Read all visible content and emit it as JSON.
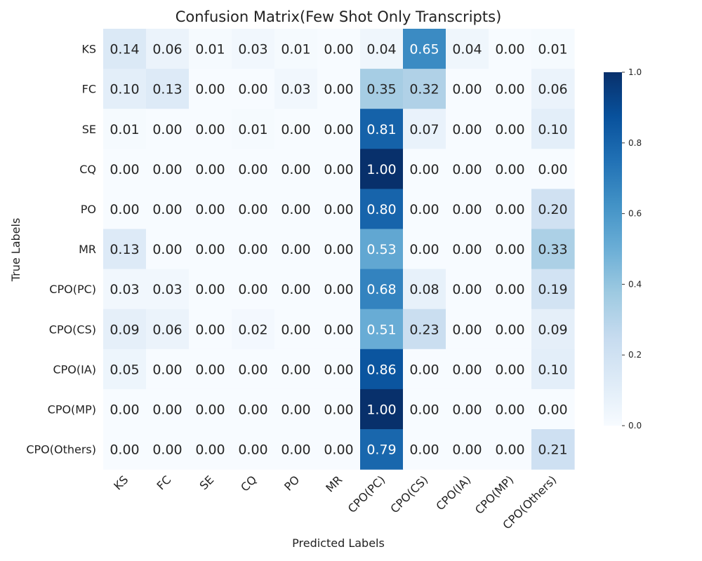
{
  "chart_data": {
    "type": "heatmap",
    "title": "Confusion Matrix(Few Shot Only Transcripts)",
    "xlabel": "Predicted Labels",
    "ylabel": "True Labels",
    "x_categories": [
      "KS",
      "FC",
      "SE",
      "CQ",
      "PO",
      "MR",
      "CPO(PC)",
      "CPO(CS)",
      "CPO(IA)",
      "CPO(MP)",
      "CPO(Others)"
    ],
    "y_categories": [
      "KS",
      "FC",
      "SE",
      "CQ",
      "PO",
      "MR",
      "CPO(PC)",
      "CPO(CS)",
      "CPO(IA)",
      "CPO(MP)",
      "CPO(Others)"
    ],
    "values": [
      [
        0.14,
        0.06,
        0.01,
        0.03,
        0.01,
        0.0,
        0.04,
        0.65,
        0.04,
        0.0,
        0.01
      ],
      [
        0.1,
        0.13,
        0.0,
        0.0,
        0.03,
        0.0,
        0.35,
        0.32,
        0.0,
        0.0,
        0.06
      ],
      [
        0.01,
        0.0,
        0.0,
        0.01,
        0.0,
        0.0,
        0.81,
        0.07,
        0.0,
        0.0,
        0.1
      ],
      [
        0.0,
        0.0,
        0.0,
        0.0,
        0.0,
        0.0,
        1.0,
        0.0,
        0.0,
        0.0,
        0.0
      ],
      [
        0.0,
        0.0,
        0.0,
        0.0,
        0.0,
        0.0,
        0.8,
        0.0,
        0.0,
        0.0,
        0.2
      ],
      [
        0.13,
        0.0,
        0.0,
        0.0,
        0.0,
        0.0,
        0.53,
        0.0,
        0.0,
        0.0,
        0.33
      ],
      [
        0.03,
        0.03,
        0.0,
        0.0,
        0.0,
        0.0,
        0.68,
        0.08,
        0.0,
        0.0,
        0.19
      ],
      [
        0.09,
        0.06,
        0.0,
        0.02,
        0.0,
        0.0,
        0.51,
        0.23,
        0.0,
        0.0,
        0.09
      ],
      [
        0.05,
        0.0,
        0.0,
        0.0,
        0.0,
        0.0,
        0.86,
        0.0,
        0.0,
        0.0,
        0.1
      ],
      [
        0.0,
        0.0,
        0.0,
        0.0,
        0.0,
        0.0,
        1.0,
        0.0,
        0.0,
        0.0,
        0.0
      ],
      [
        0.0,
        0.0,
        0.0,
        0.0,
        0.0,
        0.0,
        0.79,
        0.0,
        0.0,
        0.0,
        0.21
      ]
    ],
    "value_format": "0.00",
    "colormap": "Blues",
    "colorbar": {
      "range": [
        0.0,
        1.0
      ],
      "ticks": [
        "0.0",
        "0.2",
        "0.4",
        "0.6",
        "0.8",
        "1.0"
      ],
      "placement": "right"
    },
    "grid": false
  }
}
